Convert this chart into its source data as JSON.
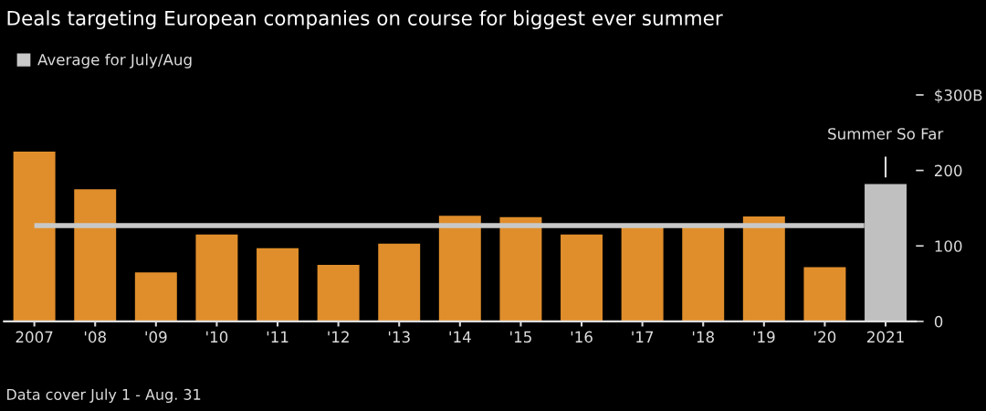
{
  "chart_data": {
    "type": "bar",
    "title": "Deals targeting European companies on course for biggest ever summer",
    "categories": [
      "2007",
      "'08",
      "'09",
      "'10",
      "'11",
      "'12",
      "'13",
      "'14",
      "'15",
      "'16",
      "'17",
      "'18",
      "'19",
      "'20",
      "2021"
    ],
    "values": [
      225,
      175,
      65,
      115,
      97,
      75,
      103,
      140,
      138,
      115,
      127,
      127,
      139,
      72,
      182
    ],
    "colors": [
      "#e08e2b",
      "#e08e2b",
      "#e08e2b",
      "#e08e2b",
      "#e08e2b",
      "#e08e2b",
      "#e08e2b",
      "#e08e2b",
      "#e08e2b",
      "#e08e2b",
      "#e08e2b",
      "#e08e2b",
      "#e08e2b",
      "#e08e2b",
      "#c0c0c0"
    ],
    "ylim": [
      0,
      300
    ],
    "yticks": [
      0,
      100,
      200,
      {
        "value": 300,
        "label": "$300B"
      }
    ],
    "ref_lines": [
      {
        "axis": "y",
        "value": 127,
        "label": "Average for July/Aug",
        "color": "#c8c8c8"
      }
    ],
    "annotations": [
      {
        "text": "Summer So Far",
        "x": "2021",
        "y": 182
      },
      "Data cover July 1 - Aug. 31"
    ],
    "legend": "top left",
    "grid": false
  }
}
